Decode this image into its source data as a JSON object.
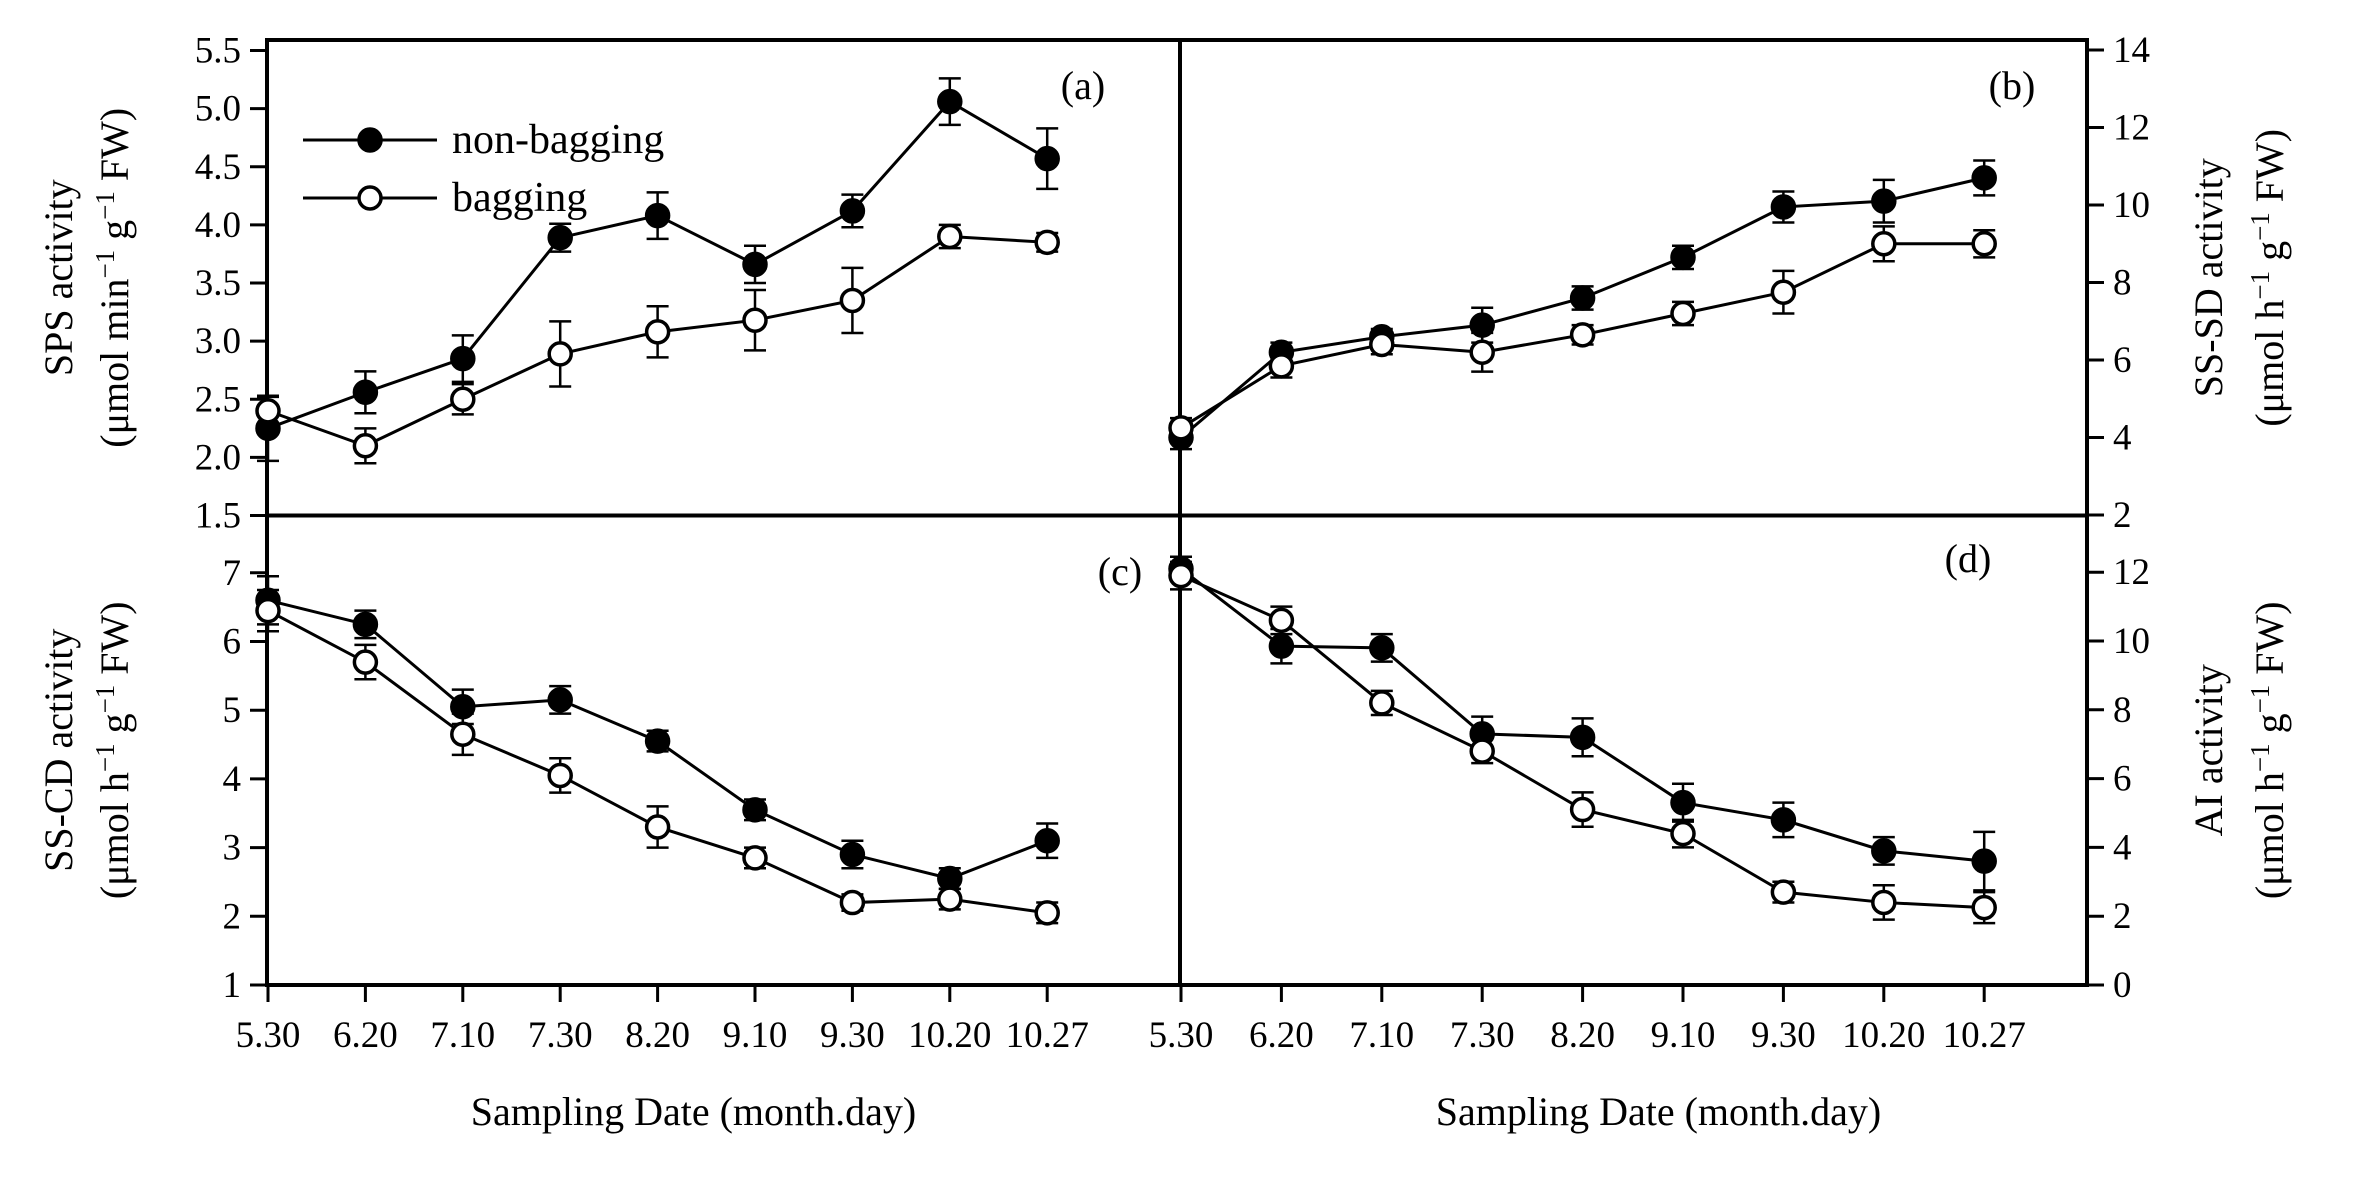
{
  "figure": {
    "background": "#ffffff",
    "ink_color": "#000000"
  },
  "chart_data": {
    "type": "line",
    "grid": false,
    "x_axis_title": "Sampling Date (month.day)",
    "x_categories": [
      "5.30",
      "6.20",
      "7.10",
      "7.30",
      "8.20",
      "9.10",
      "9.30",
      "10.20",
      "10.27"
    ],
    "legend": {
      "position": "top-left inside panel a",
      "items": [
        {
          "label": "non-bagging",
          "marker": "filled-circle"
        },
        {
          "label": "bagging",
          "marker": "open-circle"
        }
      ]
    },
    "panels": [
      {
        "letter": "(a)",
        "ylabel_line1": "SPS activity",
        "ylabel_line2": "(μmol min⁻¹ g⁻¹ FW)",
        "axis_side": "left",
        "ylim": [
          1.5,
          5.6
        ],
        "ytick_labels": [
          "5.5",
          "5.0",
          "4.5",
          "4.0",
          "3.5",
          "3.0",
          "2.5",
          "2.0",
          "1.5"
        ],
        "ytick_values": [
          5.5,
          5.0,
          4.5,
          4.0,
          3.5,
          3.0,
          2.5,
          2.0,
          1.5
        ],
        "series": [
          {
            "name": "non-bagging",
            "marker": "filled-circle",
            "values": [
              2.25,
              2.56,
              2.85,
              3.89,
              4.08,
              3.66,
              4.12,
              5.06,
              4.57
            ],
            "errors": [
              0.28,
              0.18,
              0.2,
              0.12,
              0.2,
              0.16,
              0.14,
              0.2,
              0.26
            ]
          },
          {
            "name": "bagging",
            "marker": "open-circle",
            "values": [
              2.4,
              2.1,
              2.5,
              2.89,
              3.08,
              3.18,
              3.35,
              3.9,
              3.85
            ],
            "errors": [
              0.12,
              0.15,
              0.13,
              0.28,
              0.22,
              0.26,
              0.28,
              0.1,
              0.08
            ]
          }
        ]
      },
      {
        "letter": "(b)",
        "ylabel_line1": "SS-SD activity",
        "ylabel_line2": "(μmol h⁻¹ g⁻¹ FW)",
        "axis_side": "right",
        "ylim": [
          0.5,
          14.3
        ],
        "ytick_labels": [
          "14",
          "12",
          "10",
          "8",
          "6",
          "4",
          "2"
        ],
        "ytick_values": [
          14,
          12,
          10,
          8,
          6,
          4,
          2
        ],
        "series": [
          {
            "name": "non-bagging",
            "marker": "filled-circle",
            "values": [
              4.0,
              6.2,
              6.6,
              6.9,
              7.6,
              8.65,
              9.95,
              10.1,
              10.7
            ],
            "errors": [
              0.3,
              0.25,
              0.2,
              0.45,
              0.3,
              0.3,
              0.4,
              0.55,
              0.45
            ]
          },
          {
            "name": "bagging",
            "marker": "open-circle",
            "values": [
              4.25,
              5.85,
              6.4,
              6.2,
              6.65,
              7.2,
              7.75,
              9.0,
              9.0
            ],
            "errors": [
              0.25,
              0.3,
              0.25,
              0.5,
              0.25,
              0.3,
              0.55,
              0.45,
              0.35
            ]
          }
        ]
      },
      {
        "letter": "(c)",
        "ylabel_line1": "SS-CD activity",
        "ylabel_line2": "(μmol h⁻¹ g⁻¹ FW)",
        "axis_side": "left",
        "ylim": [
          1,
          7.8
        ],
        "ytick_labels": [
          "7",
          "6",
          "5",
          "4",
          "3",
          "2",
          "1"
        ],
        "ytick_values": [
          7,
          6,
          5,
          4,
          3,
          2,
          1
        ],
        "series": [
          {
            "name": "non-bagging",
            "marker": "filled-circle",
            "values": [
              6.6,
              6.25,
              5.05,
              5.15,
              4.55,
              3.55,
              2.9,
              2.55,
              3.1
            ],
            "errors": [
              0.35,
              0.2,
              0.25,
              0.2,
              0.15,
              0.15,
              0.2,
              0.15,
              0.25
            ]
          },
          {
            "name": "bagging",
            "marker": "open-circle",
            "values": [
              6.45,
              5.7,
              4.65,
              4.05,
              3.3,
              2.85,
              2.2,
              2.25,
              2.05
            ],
            "errors": [
              0.3,
              0.25,
              0.3,
              0.25,
              0.3,
              0.15,
              0.12,
              0.15,
              0.15
            ]
          }
        ]
      },
      {
        "letter": "(d)",
        "ylabel_line1": "AI activity",
        "ylabel_line2": "(μmol h⁻¹ g⁻¹ FW)",
        "axis_side": "right",
        "ylim": [
          0,
          13.7
        ],
        "ytick_labels": [
          "12",
          "10",
          "8",
          "6",
          "4",
          "2",
          "0"
        ],
        "ytick_values": [
          12,
          10,
          8,
          6,
          4,
          2,
          0
        ],
        "series": [
          {
            "name": "non-bagging",
            "marker": "filled-circle",
            "values": [
              12.1,
              9.85,
              9.8,
              7.3,
              7.2,
              5.3,
              4.8,
              3.9,
              3.6
            ],
            "errors": [
              0.35,
              0.5,
              0.4,
              0.5,
              0.55,
              0.55,
              0.5,
              0.4,
              0.85
            ]
          },
          {
            "name": "bagging",
            "marker": "open-circle",
            "values": [
              11.9,
              10.6,
              8.2,
              6.8,
              5.1,
              4.4,
              2.7,
              2.4,
              2.25
            ],
            "errors": [
              0.4,
              0.4,
              0.35,
              0.35,
              0.5,
              0.4,
              0.3,
              0.5,
              0.45
            ]
          }
        ]
      }
    ]
  }
}
